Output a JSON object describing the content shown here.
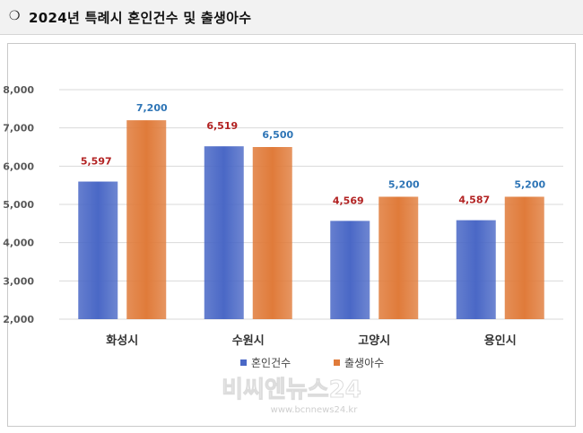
{
  "header": {
    "bullet": "❍",
    "title": "2024년 특례시 혼인건수 및 출생아수"
  },
  "chart_data": {
    "type": "bar",
    "categories": [
      "화성시",
      "수원시",
      "고양시",
      "용인시"
    ],
    "series": [
      {
        "name": "혼인건수",
        "values": [
          5597,
          6519,
          4569,
          4587
        ],
        "labels": [
          "5,597",
          "6,519",
          "4,569",
          "4,587"
        ],
        "color": "#4a68c6"
      },
      {
        "name": "출생아수",
        "values": [
          7200,
          6500,
          5200,
          5200
        ],
        "labels": [
          "7,200",
          "6,500",
          "5,200",
          "5,200"
        ],
        "color": "#e07b3a"
      }
    ],
    "yticks": [
      "2,000",
      "3,000",
      "4,000",
      "5,000",
      "6,000",
      "7,000",
      "8,000"
    ],
    "ylim": [
      2000,
      8000
    ],
    "grid": true,
    "legend": "bottom-center",
    "label_colors": {
      "혼인건수": "#b22222",
      "출생아수": "#2e75b6"
    }
  },
  "watermark": {
    "main": "비씨엔뉴스24",
    "url": "www.bcnnews24.kr"
  }
}
